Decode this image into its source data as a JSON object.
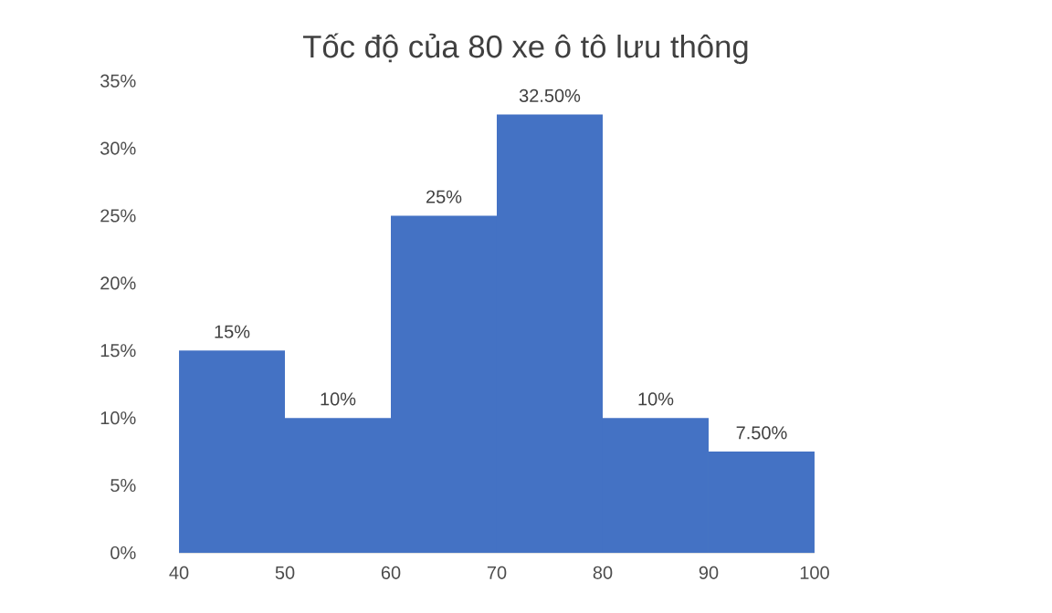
{
  "chart_data": {
    "type": "histogram",
    "title": "Tốc độ của 80 xe ô tô lưu thông",
    "bins": [
      40,
      50,
      60,
      70,
      80,
      90,
      100
    ],
    "values": [
      15,
      10,
      25,
      32.5,
      10,
      7.5
    ],
    "value_labels": [
      "15%",
      "10%",
      "25%",
      "32.50%",
      "10%",
      "7.50%"
    ],
    "color": "#4472c4",
    "xlim": [
      40,
      100
    ],
    "xticks": [
      40,
      50,
      60,
      70,
      80,
      90,
      100
    ],
    "ylim": [
      0,
      35
    ],
    "yticks": [
      {
        "value": 0,
        "label": "0%"
      },
      {
        "value": 5,
        "label": "5%"
      },
      {
        "value": 10,
        "label": "10%"
      },
      {
        "value": 15,
        "label": "15%"
      },
      {
        "value": 20,
        "label": "20%"
      },
      {
        "value": 25,
        "label": "25%"
      },
      {
        "value": 30,
        "label": "30%"
      },
      {
        "value": 35,
        "label": "35%"
      }
    ],
    "grid": false
  }
}
